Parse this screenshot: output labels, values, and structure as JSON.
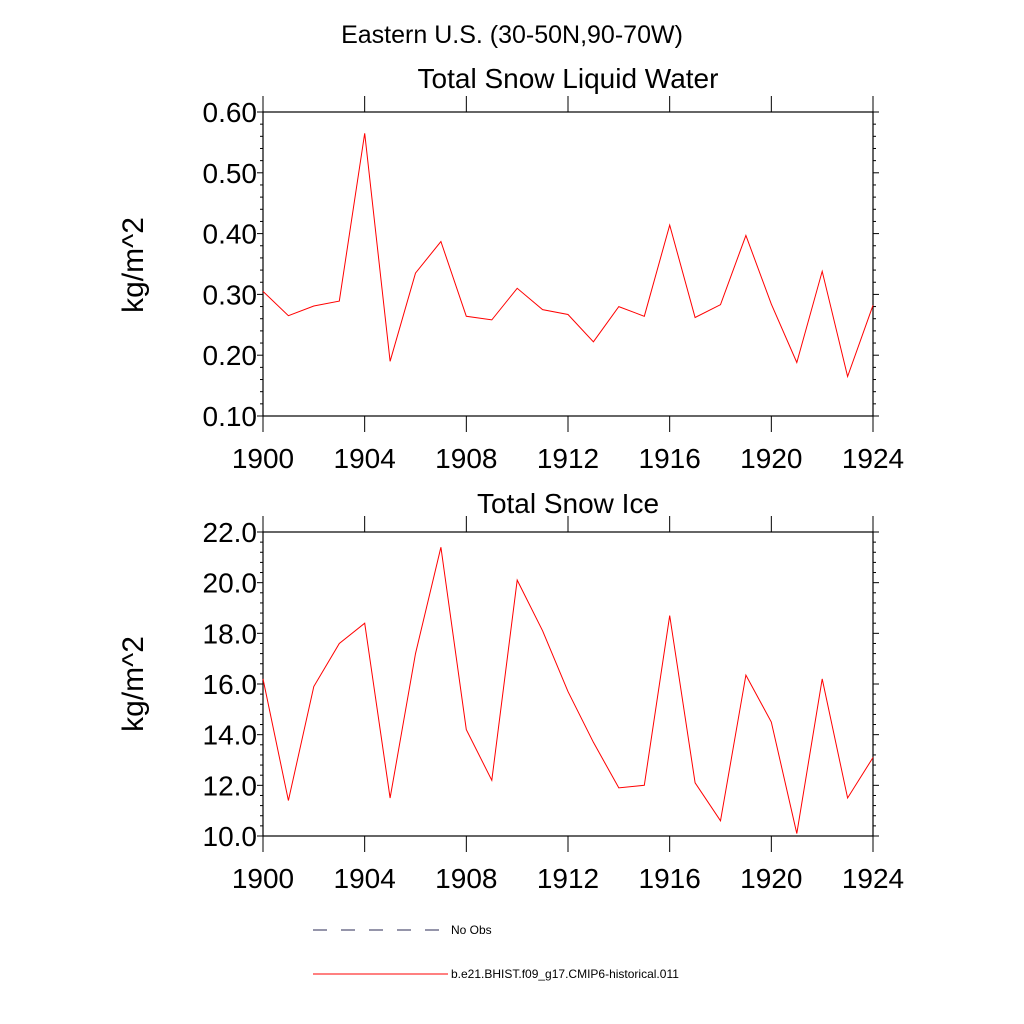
{
  "figure_title": "Eastern U.S. (30-50N,90-70W)",
  "chart_data": [
    {
      "type": "line",
      "title": "Total Snow Liquid Water",
      "xlabel": "",
      "ylabel": "kg/m^2",
      "xlim": [
        1900,
        1924
      ],
      "ylim": [
        0.1,
        0.6
      ],
      "x_ticks": [
        1900,
        1904,
        1908,
        1912,
        1916,
        1920,
        1924
      ],
      "y_ticks": [
        "0.10",
        "0.20",
        "0.30",
        "0.40",
        "0.50",
        "0.60"
      ],
      "x": [
        1900,
        1901,
        1902,
        1903,
        1904,
        1905,
        1906,
        1907,
        1908,
        1909,
        1910,
        1911,
        1912,
        1913,
        1914,
        1915,
        1916,
        1917,
        1918,
        1919,
        1920,
        1921,
        1922,
        1923,
        1924
      ],
      "series": [
        {
          "name": "b.e21.BHIST.f09_g17.CMIP6-historical.011",
          "color": "#ff0000",
          "values": [
            0.305,
            0.265,
            0.281,
            0.289,
            0.565,
            0.19,
            0.335,
            0.387,
            0.264,
            0.258,
            0.31,
            0.275,
            0.267,
            0.222,
            0.28,
            0.264,
            0.414,
            0.262,
            0.283,
            0.397,
            0.284,
            0.188,
            0.338,
            0.165,
            0.282
          ]
        }
      ]
    },
    {
      "type": "line",
      "title": "Total Snow Ice",
      "xlabel": "",
      "ylabel": "kg/m^2",
      "xlim": [
        1900,
        1924
      ],
      "ylim": [
        10.0,
        22.0
      ],
      "x_ticks": [
        1900,
        1904,
        1908,
        1912,
        1916,
        1920,
        1924
      ],
      "y_ticks": [
        "10.0",
        "12.0",
        "14.0",
        "16.0",
        "18.0",
        "20.0",
        "22.0"
      ],
      "x": [
        1900,
        1901,
        1902,
        1903,
        1904,
        1905,
        1906,
        1907,
        1908,
        1909,
        1910,
        1911,
        1912,
        1913,
        1914,
        1915,
        1916,
        1917,
        1918,
        1919,
        1920,
        1921,
        1922,
        1923,
        1924
      ],
      "series": [
        {
          "name": "b.e21.BHIST.f09_g17.CMIP6-historical.011",
          "color": "#ff0000",
          "values": [
            16.2,
            11.4,
            15.9,
            17.6,
            18.4,
            11.5,
            17.2,
            21.4,
            14.2,
            12.2,
            20.1,
            18.1,
            15.7,
            13.7,
            11.9,
            12.0,
            18.7,
            12.1,
            10.6,
            16.35,
            14.5,
            10.1,
            16.2,
            11.5,
            13.1
          ]
        }
      ]
    }
  ],
  "legend": {
    "placement": "bottom",
    "entries": [
      {
        "label": "No Obs",
        "color": "#2b2b55",
        "style": "dashed"
      },
      {
        "label": "b.e21.BHIST.f09_g17.CMIP6-historical.011",
        "color": "#ff0000",
        "style": "solid"
      }
    ]
  }
}
